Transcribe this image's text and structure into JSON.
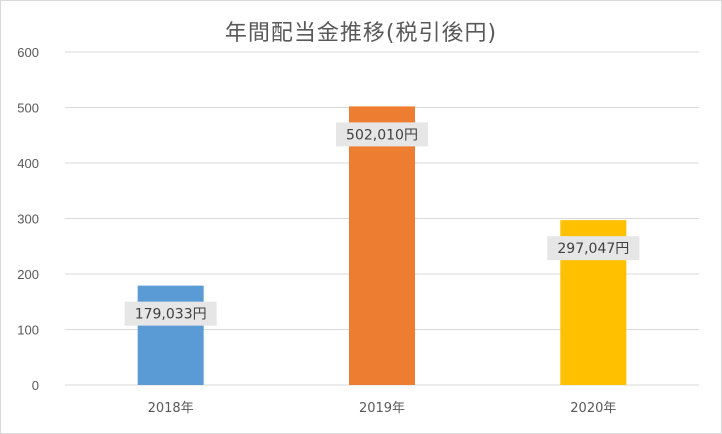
{
  "chart_data": {
    "type": "bar",
    "title": "年間配当金推移(税引後円)",
    "xlabel": "",
    "ylabel": "",
    "categories": [
      "2018年",
      "2019年",
      "2020年"
    ],
    "values": [
      179.033,
      502.01,
      297.047
    ],
    "data_labels": [
      "179,033円",
      "502,010円",
      "297,047円"
    ],
    "colors": [
      "#5b9bd5",
      "#ed7d31",
      "#ffc000"
    ],
    "ylim": [
      0,
      600
    ],
    "yticks": [
      0,
      100,
      200,
      300,
      400,
      500,
      600
    ],
    "grid": true,
    "legend": "none"
  }
}
